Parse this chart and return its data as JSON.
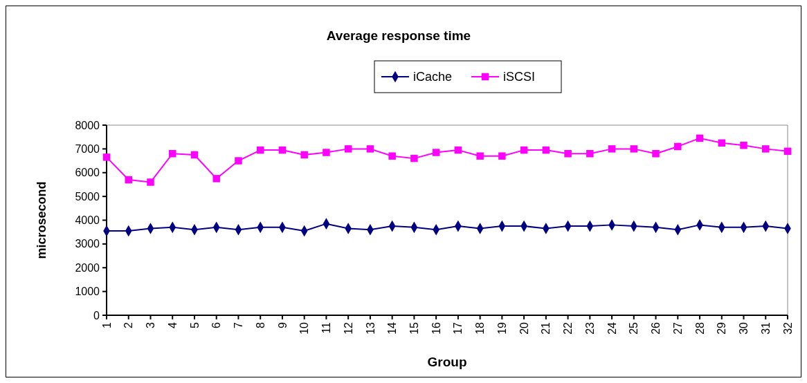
{
  "chart_data": {
    "type": "line",
    "title": "Average response time",
    "xlabel": "Group",
    "ylabel": "microsecond",
    "categories": [
      "1",
      "2",
      "3",
      "4",
      "5",
      "6",
      "7",
      "8",
      "9",
      "10",
      "11",
      "12",
      "13",
      "14",
      "15",
      "16",
      "17",
      "18",
      "19",
      "20",
      "21",
      "22",
      "23",
      "24",
      "25",
      "26",
      "27",
      "28",
      "29",
      "30",
      "31",
      "32"
    ],
    "series": [
      {
        "name": "iCache",
        "color": "#000080",
        "marker": "diamond",
        "values": [
          3550,
          3550,
          3650,
          3700,
          3600,
          3700,
          3600,
          3700,
          3700,
          3550,
          3850,
          3650,
          3600,
          3750,
          3700,
          3600,
          3750,
          3650,
          3750,
          3750,
          3650,
          3750,
          3750,
          3800,
          3750,
          3700,
          3600,
          3800,
          3700,
          3700,
          3750,
          3650
        ]
      },
      {
        "name": "iSCSI",
        "color": "#ff00ff",
        "marker": "square",
        "values": [
          6650,
          5700,
          5600,
          6800,
          6750,
          5750,
          6500,
          6950,
          6950,
          6750,
          6850,
          7000,
          7000,
          6700,
          6600,
          6850,
          6950,
          6700,
          6700,
          6950,
          6950,
          6800,
          6800,
          7000,
          7000,
          6800,
          7100,
          7450,
          7250,
          7150,
          7000,
          6900
        ]
      }
    ],
    "ylim": [
      0,
      8000
    ],
    "yticks": [
      0,
      1000,
      2000,
      3000,
      4000,
      5000,
      6000,
      7000,
      8000
    ],
    "grid": false,
    "legend": "top"
  }
}
